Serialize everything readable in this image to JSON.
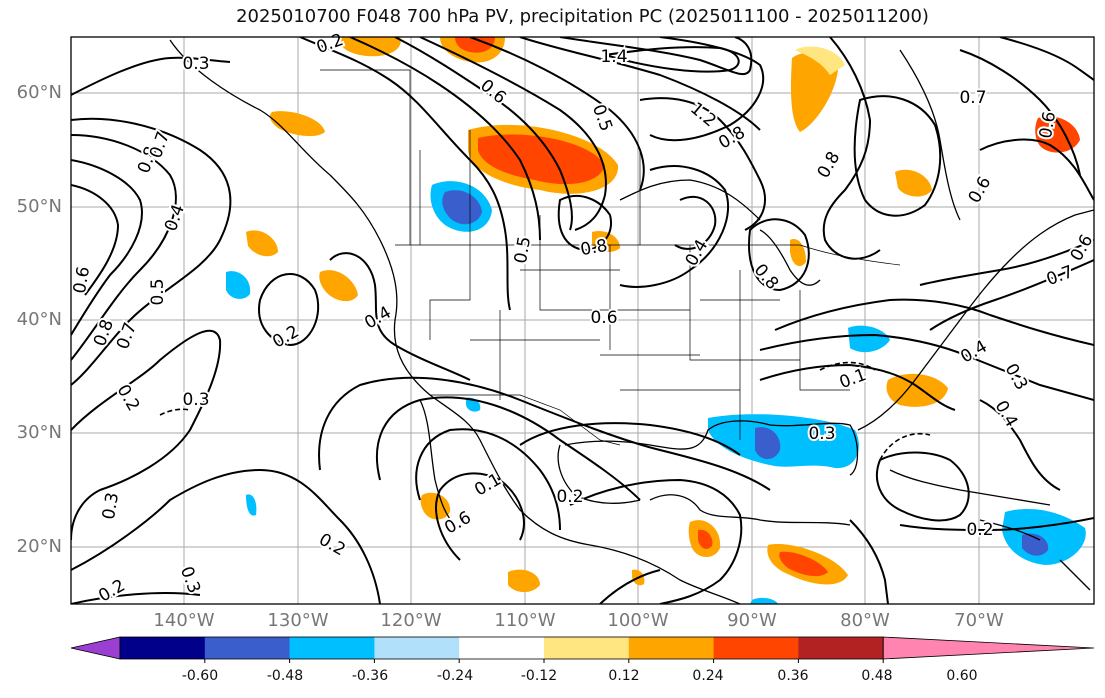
{
  "title": "2025010700 F048 700 hPa PV, precipitation PC (2025011100 - 2025011200)",
  "lat_labels": [
    "60°N",
    "50°N",
    "40°N",
    "30°N",
    "20°N"
  ],
  "lon_labels": [
    "140°W",
    "130°W",
    "120°W",
    "110°W",
    "100°W",
    "90°W",
    "80°W",
    "70°W"
  ],
  "colorbar": {
    "ticks": [
      "-0.60",
      "-0.48",
      "-0.36",
      "-0.24",
      "-0.12",
      "0.12",
      "0.24",
      "0.36",
      "0.48",
      "0.60"
    ],
    "colors": [
      "#9a3fd1",
      "#00008b",
      "#3a5fcd",
      "#00bfff",
      "#b0e0fa",
      "#ffffff",
      "#ffe680",
      "#ffa500",
      "#ff4500",
      "#b22222",
      "#ff85b0"
    ]
  },
  "contour_labels": [
    {
      "text": "0.3"
    },
    {
      "text": "0.2"
    },
    {
      "text": "1.4"
    },
    {
      "text": "1.2"
    },
    {
      "text": "0.8"
    },
    {
      "text": "0.6"
    },
    {
      "text": "0.8"
    },
    {
      "text": "0.7"
    },
    {
      "text": "0.4"
    },
    {
      "text": "0.5"
    },
    {
      "text": "0.6"
    },
    {
      "text": "0.8"
    },
    {
      "text": "0.7"
    },
    {
      "text": "0.2"
    },
    {
      "text": "0.3"
    },
    {
      "text": "0.4"
    },
    {
      "text": "0.2"
    },
    {
      "text": "0.5"
    },
    {
      "text": "0.8"
    },
    {
      "text": "0.4"
    },
    {
      "text": "0.8"
    },
    {
      "text": "0.6"
    },
    {
      "text": "0.1"
    },
    {
      "text": "0.3"
    },
    {
      "text": "0.4"
    },
    {
      "text": "0.3"
    },
    {
      "text": "0.4"
    },
    {
      "text": "0.2"
    },
    {
      "text": "0.2"
    },
    {
      "text": "0.3"
    },
    {
      "text": "0.2"
    },
    {
      "text": "0.3"
    },
    {
      "text": "0.2"
    },
    {
      "text": "0.6"
    },
    {
      "text": "0.1"
    },
    {
      "text": "0.7"
    },
    {
      "text": "0.6"
    },
    {
      "text": "0.5"
    },
    {
      "text": "0.8"
    },
    {
      "text": "0.6"
    },
    {
      "text": "0.7"
    },
    {
      "text": "0.6"
    }
  ]
}
